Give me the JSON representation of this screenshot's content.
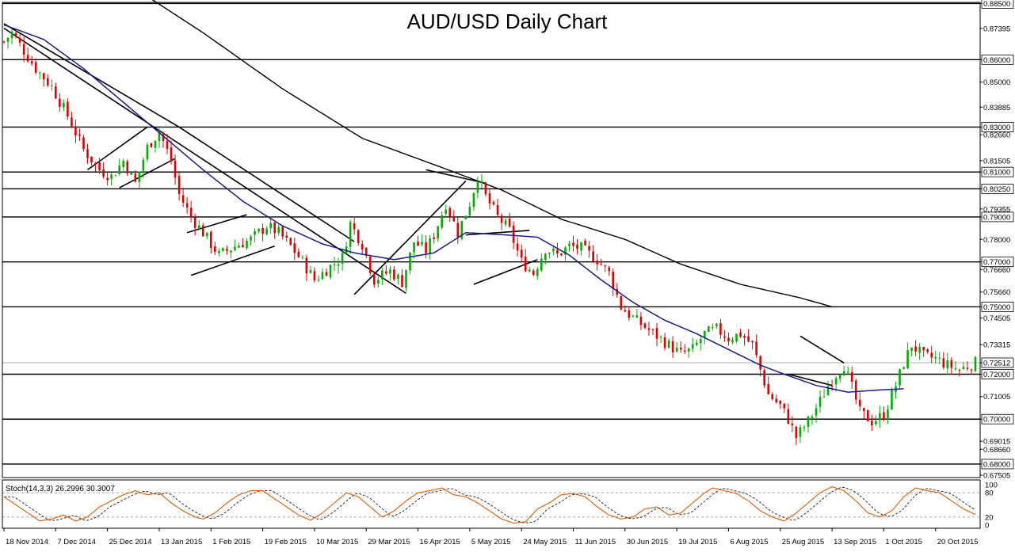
{
  "chart_data": {
    "type": "candlestick",
    "title": "AUD/USD Daily Chart",
    "colors": {
      "background": "#ffffff",
      "frame": "#000000",
      "up_candle": "#00b000",
      "down_candle": "#e00000",
      "sma_fast": "#1a1a8c",
      "sma_slow": "#000000",
      "stoch_main": "#e05a00",
      "stoch_signal": "#202020",
      "price_tag_bg": "#ffffff"
    },
    "price_axis": {
      "ylim": [
        0.674,
        0.8855
      ],
      "tick_labels": [
        "0.88500",
        "0.87395",
        "0.86000",
        "0.85000",
        "0.83885",
        "0.83000",
        "0.82660",
        "0.81505",
        "0.81000",
        "0.80250",
        "0.79355",
        "0.79000",
        "0.78000",
        "0.77000",
        "0.76660",
        "0.75660",
        "0.75000",
        "0.74505",
        "0.73315",
        "0.72512",
        "0.72000",
        "0.71005",
        "0.70000",
        "0.69015",
        "0.68660",
        "0.68000",
        "0.67505"
      ],
      "tick_values": [
        0.885,
        0.87395,
        0.86,
        0.85,
        0.83885,
        0.83,
        0.8266,
        0.81505,
        0.81,
        0.8025,
        0.79355,
        0.79,
        0.78,
        0.77,
        0.7666,
        0.7566,
        0.75,
        0.74505,
        0.73315,
        0.72512,
        0.72,
        0.71005,
        0.7,
        0.69015,
        0.6866,
        0.68,
        0.67505
      ],
      "boxed_labels": [
        "0.88500",
        "0.86000",
        "0.83000",
        "0.81000",
        "0.80250",
        "0.79000",
        "0.77000",
        "0.75000",
        "0.72512",
        "0.72000",
        "0.70000",
        "0.68000"
      ],
      "current_price": 0.72512
    },
    "horizontal_levels": [
      0.885,
      0.86,
      0.83,
      0.81,
      0.8025,
      0.79,
      0.77,
      0.75,
      0.72,
      0.7,
      0.68
    ],
    "x_axis": {
      "bar_count": 245,
      "tick_labels": [
        "18 Nov 2014",
        "7 Dec 2014",
        "25 Dec 2014",
        "13 Jan 2015",
        "1 Feb 2015",
        "19 Feb 2015",
        "10 Mar 2015",
        "29 Mar 2015",
        "16 Apr 2015",
        "5 May 2015",
        "24 May 2015",
        "11 Jun 2015",
        "30 Jun 2015",
        "19 Jul 2015",
        "6 Aug 2015",
        "25 Aug 2015",
        "13 Sep 2015",
        "1 Oct 2015",
        "20 Oct 2015"
      ],
      "tick_bar_index": [
        0,
        13,
        26,
        39,
        52,
        65,
        78,
        91,
        104,
        117,
        130,
        143,
        156,
        169,
        182,
        195,
        208,
        221,
        234
      ]
    },
    "price_path_anchors": [
      [
        0,
        0.868
      ],
      [
        2,
        0.872
      ],
      [
        5,
        0.864
      ],
      [
        8,
        0.856
      ],
      [
        12,
        0.848
      ],
      [
        16,
        0.835
      ],
      [
        20,
        0.82
      ],
      [
        24,
        0.811
      ],
      [
        27,
        0.808
      ],
      [
        30,
        0.815
      ],
      [
        33,
        0.805
      ],
      [
        36,
        0.821
      ],
      [
        39,
        0.828
      ],
      [
        42,
        0.815
      ],
      [
        44,
        0.8
      ],
      [
        47,
        0.79
      ],
      [
        50,
        0.783
      ],
      [
        54,
        0.773
      ],
      [
        58,
        0.777
      ],
      [
        62,
        0.78
      ],
      [
        66,
        0.786
      ],
      [
        69,
        0.783
      ],
      [
        72,
        0.777
      ],
      [
        75,
        0.77
      ],
      [
        78,
        0.762
      ],
      [
        82,
        0.768
      ],
      [
        85,
        0.772
      ],
      [
        87,
        0.787
      ],
      [
        90,
        0.778
      ],
      [
        93,
        0.762
      ],
      [
        97,
        0.766
      ],
      [
        100,
        0.761
      ],
      [
        103,
        0.779
      ],
      [
        106,
        0.775
      ],
      [
        108,
        0.782
      ],
      [
        111,
        0.796
      ],
      [
        114,
        0.783
      ],
      [
        117,
        0.796
      ],
      [
        119,
        0.808
      ],
      [
        121,
        0.799
      ],
      [
        124,
        0.79
      ],
      [
        127,
        0.784
      ],
      [
        130,
        0.77
      ],
      [
        133,
        0.765
      ],
      [
        136,
        0.776
      ],
      [
        139,
        0.773
      ],
      [
        142,
        0.777
      ],
      [
        145,
        0.776
      ],
      [
        149,
        0.771
      ],
      [
        152,
        0.765
      ],
      [
        155,
        0.75
      ],
      [
        158,
        0.745
      ],
      [
        161,
        0.741
      ],
      [
        164,
        0.737
      ],
      [
        167,
        0.733
      ],
      [
        170,
        0.729
      ],
      [
        173,
        0.731
      ],
      [
        176,
        0.738
      ],
      [
        179,
        0.74
      ],
      [
        182,
        0.736
      ],
      [
        185,
        0.738
      ],
      [
        188,
        0.733
      ],
      [
        190,
        0.722
      ],
      [
        192,
        0.711
      ],
      [
        195,
        0.706
      ],
      [
        197,
        0.7
      ],
      [
        199,
        0.692
      ],
      [
        202,
        0.699
      ],
      [
        205,
        0.708
      ],
      [
        207,
        0.715
      ],
      [
        209,
        0.72
      ],
      [
        211,
        0.724
      ],
      [
        213,
        0.714
      ],
      [
        215,
        0.703
      ],
      [
        218,
        0.699
      ],
      [
        221,
        0.702
      ],
      [
        224,
        0.715
      ],
      [
        226,
        0.725
      ],
      [
        228,
        0.733
      ],
      [
        231,
        0.728
      ],
      [
        234,
        0.727
      ],
      [
        237,
        0.724
      ],
      [
        240,
        0.722
      ],
      [
        244,
        0.7251
      ]
    ],
    "trendlines": [
      [
        [
          0,
          0.874
        ],
        [
          101,
          0.756
        ]
      ],
      [
        [
          0,
          0.876
        ],
        [
          44,
          0.83
        ]
      ],
      [
        [
          21,
          0.811
        ],
        [
          36,
          0.83
        ]
      ],
      [
        [
          29,
          0.803
        ],
        [
          43,
          0.816
        ]
      ],
      [
        [
          44,
          0.83
        ],
        [
          88,
          0.779
        ]
      ],
      [
        [
          46,
          0.783
        ],
        [
          61,
          0.791
        ]
      ],
      [
        [
          47,
          0.764
        ],
        [
          68,
          0.777
        ]
      ],
      [
        [
          88,
          0.7555
        ],
        [
          116,
          0.806
        ]
      ],
      [
        [
          106,
          0.811
        ],
        [
          121,
          0.805
        ]
      ],
      [
        [
          116,
          0.782
        ],
        [
          132,
          0.784
        ]
      ],
      [
        [
          118,
          0.76
        ],
        [
          134,
          0.771
        ]
      ],
      [
        [
          200,
          0.737
        ],
        [
          211,
          0.725
        ]
      ],
      [
        [
          197,
          0.72
        ],
        [
          208,
          0.715
        ]
      ]
    ],
    "sma_fast_anchors": [
      [
        0,
        0.8755
      ],
      [
        10,
        0.869
      ],
      [
        20,
        0.856
      ],
      [
        30,
        0.841
      ],
      [
        40,
        0.826
      ],
      [
        50,
        0.811
      ],
      [
        60,
        0.797
      ],
      [
        70,
        0.786
      ],
      [
        80,
        0.778
      ],
      [
        88,
        0.774
      ],
      [
        98,
        0.771
      ],
      [
        108,
        0.774
      ],
      [
        116,
        0.783
      ],
      [
        126,
        0.782
      ],
      [
        134,
        0.781
      ],
      [
        142,
        0.773
      ],
      [
        150,
        0.762
      ],
      [
        158,
        0.752
      ],
      [
        166,
        0.744
      ],
      [
        174,
        0.738
      ],
      [
        182,
        0.731
      ],
      [
        190,
        0.724
      ],
      [
        196,
        0.72
      ],
      [
        204,
        0.715
      ],
      [
        212,
        0.712
      ],
      [
        220,
        0.713
      ],
      [
        226,
        0.7135
      ]
    ],
    "sma_slow_anchors": [
      [
        37,
        0.887
      ],
      [
        50,
        0.872
      ],
      [
        70,
        0.847
      ],
      [
        90,
        0.825
      ],
      [
        110,
        0.812
      ],
      [
        125,
        0.802
      ],
      [
        140,
        0.789
      ],
      [
        156,
        0.78
      ],
      [
        170,
        0.769
      ],
      [
        185,
        0.76
      ],
      [
        200,
        0.754
      ],
      [
        208,
        0.75
      ]
    ],
    "stochastic": {
      "label": "Stoch(14,3,3) 26.2996 30.3007",
      "ylim": [
        0,
        100
      ],
      "tick_labels": [
        "100",
        "80",
        "20",
        "0"
      ],
      "tick_values": [
        100,
        80,
        20,
        0
      ],
      "guide_levels": [
        80,
        20
      ],
      "main_anchors": [
        [
          0,
          70
        ],
        [
          3,
          50
        ],
        [
          6,
          30
        ],
        [
          9,
          10
        ],
        [
          12,
          15
        ],
        [
          15,
          25
        ],
        [
          18,
          10
        ],
        [
          21,
          20
        ],
        [
          24,
          45
        ],
        [
          27,
          60
        ],
        [
          30,
          75
        ],
        [
          33,
          85
        ],
        [
          36,
          75
        ],
        [
          39,
          80
        ],
        [
          42,
          55
        ],
        [
          45,
          35
        ],
        [
          48,
          20
        ],
        [
          50,
          15
        ],
        [
          53,
          30
        ],
        [
          56,
          55
        ],
        [
          59,
          75
        ],
        [
          62,
          85
        ],
        [
          65,
          85
        ],
        [
          68,
          65
        ],
        [
          71,
          45
        ],
        [
          74,
          25
        ],
        [
          77,
          12
        ],
        [
          80,
          30
        ],
        [
          83,
          55
        ],
        [
          86,
          80
        ],
        [
          89,
          70
        ],
        [
          92,
          45
        ],
        [
          95,
          20
        ],
        [
          98,
          35
        ],
        [
          101,
          60
        ],
        [
          104,
          80
        ],
        [
          107,
          85
        ],
        [
          110,
          92
        ],
        [
          113,
          75
        ],
        [
          116,
          70
        ],
        [
          119,
          55
        ],
        [
          122,
          35
        ],
        [
          125,
          15
        ],
        [
          128,
          5
        ],
        [
          131,
          8
        ],
        [
          134,
          40
        ],
        [
          137,
          55
        ],
        [
          140,
          75
        ],
        [
          143,
          78
        ],
        [
          146,
          70
        ],
        [
          149,
          45
        ],
        [
          152,
          25
        ],
        [
          155,
          15
        ],
        [
          158,
          20
        ],
        [
          161,
          40
        ],
        [
          164,
          45
        ],
        [
          167,
          25
        ],
        [
          170,
          30
        ],
        [
          173,
          55
        ],
        [
          176,
          80
        ],
        [
          178,
          92
        ],
        [
          181,
          85
        ],
        [
          184,
          78
        ],
        [
          187,
          60
        ],
        [
          190,
          35
        ],
        [
          193,
          20
        ],
        [
          196,
          10
        ],
        [
          199,
          30
        ],
        [
          202,
          55
        ],
        [
          205,
          80
        ],
        [
          208,
          95
        ],
        [
          211,
          85
        ],
        [
          214,
          60
        ],
        [
          217,
          30
        ],
        [
          220,
          20
        ],
        [
          223,
          35
        ],
        [
          226,
          70
        ],
        [
          229,
          92
        ],
        [
          232,
          85
        ],
        [
          235,
          80
        ],
        [
          238,
          60
        ],
        [
          241,
          40
        ],
        [
          244,
          26.2996
        ]
      ]
    }
  }
}
